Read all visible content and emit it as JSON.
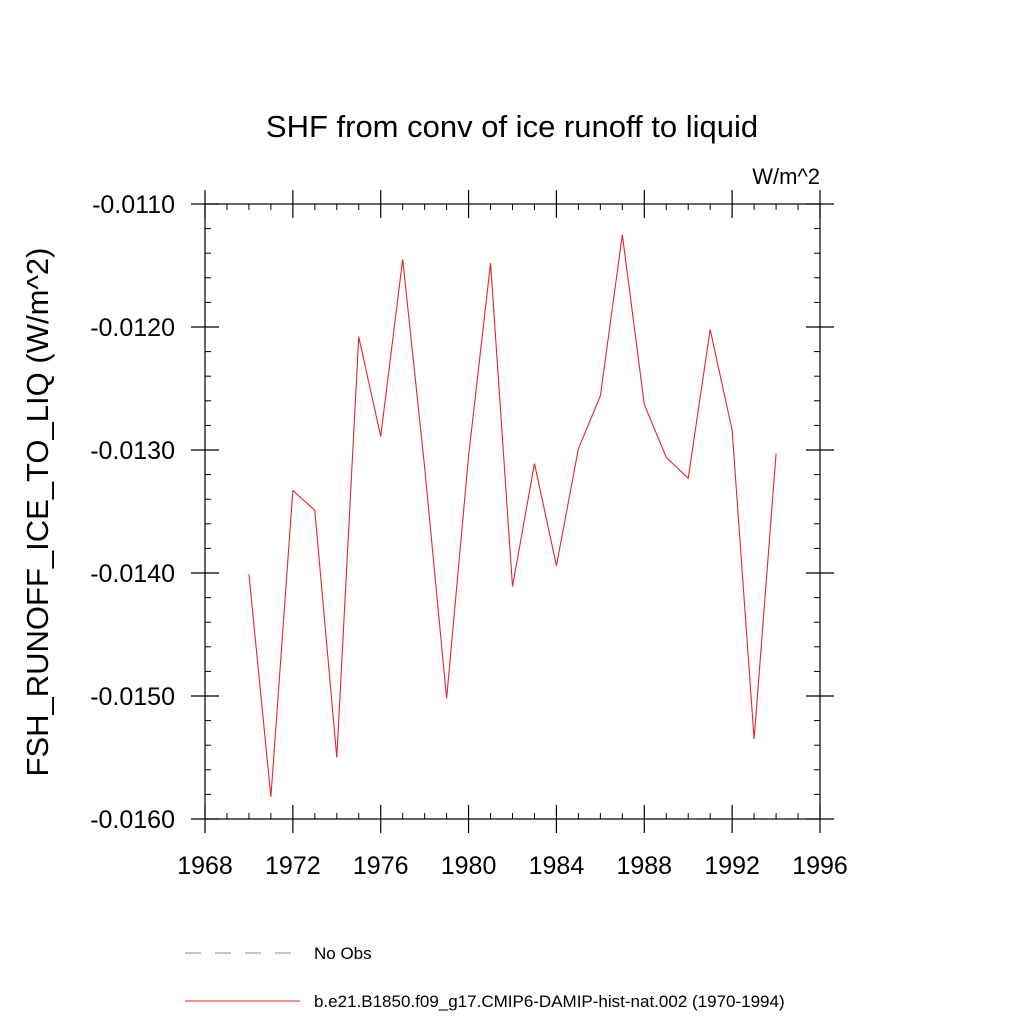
{
  "chart_data": {
    "type": "line",
    "title": "SHF from conv of ice runoff to liquid",
    "units_label": "W/m^2",
    "ylabel": "FSH_RUNOFF_ICE_TO_LIQ  (W/m^2)",
    "xlabel": "",
    "xlim": [
      1968,
      1996
    ],
    "ylim": [
      -0.016,
      -0.011
    ],
    "x_major_ticks": [
      1968,
      1972,
      1976,
      1980,
      1984,
      1988,
      1992,
      1996
    ],
    "x_tick_labels": [
      "1968",
      "1972",
      "1976",
      "1980",
      "1984",
      "1988",
      "1992",
      "1996"
    ],
    "x_minor_step": 1,
    "y_major_ticks": [
      -0.011,
      -0.012,
      -0.013,
      -0.014,
      -0.015,
      -0.016
    ],
    "y_tick_labels": [
      "-0.0110",
      "-0.0120",
      "-0.0130",
      "-0.0140",
      "-0.0150",
      "-0.0160"
    ],
    "y_minor_step": 0.0002,
    "grid": false,
    "legend_position": "bottom",
    "colors": {
      "model": "#e8242a",
      "obs": "#8a7fd4"
    },
    "series": [
      {
        "name": "b.e21.B1850.f09_g17.CMIP6-DAMIP-hist-nat.002 (1970-1994)",
        "style": "solid",
        "x": [
          1970,
          1971,
          1972,
          1973,
          1974,
          1975,
          1976,
          1977,
          1978,
          1979,
          1980,
          1981,
          1982,
          1983,
          1984,
          1985,
          1986,
          1987,
          1988,
          1989,
          1990,
          1991,
          1992,
          1993,
          1994
        ],
        "y": [
          -0.01401,
          -0.01582,
          -0.01333,
          -0.01349,
          -0.0155,
          -0.01208,
          -0.01289,
          -0.01145,
          -0.01314,
          -0.01502,
          -0.01305,
          -0.01148,
          -0.01411,
          -0.01311,
          -0.01394,
          -0.01299,
          -0.01256,
          -0.01125,
          -0.01263,
          -0.01306,
          -0.01323,
          -0.01202,
          -0.01284,
          -0.01535,
          -0.01303
        ]
      }
    ],
    "legend": [
      {
        "label": "No Obs",
        "style": "dashed",
        "color": "#8a7fd4"
      },
      {
        "label": "b.e21.B1850.f09_g17.CMIP6-DAMIP-hist-nat.002 (1970-1994)",
        "style": "solid",
        "color": "#e8242a"
      }
    ]
  }
}
